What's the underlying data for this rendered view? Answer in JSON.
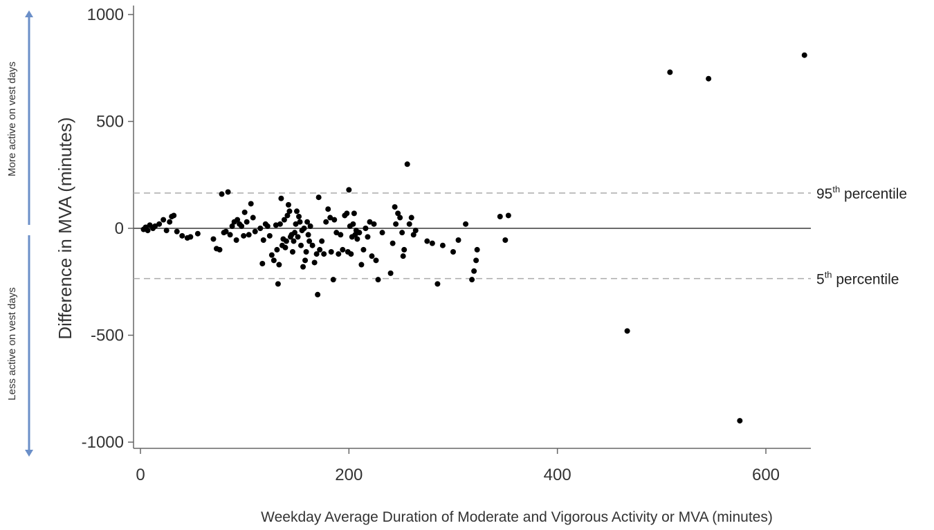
{
  "chart_data": {
    "type": "scatter",
    "xlabel": "Weekday Average Duration of Moderate and Vigorous Activity or MVA (minutes)",
    "ylabel": "Difference in MVA  (minutes)",
    "xlim": [
      -5,
      645
    ],
    "ylim": [
      -1050,
      1020
    ],
    "x_ticks": [
      0,
      200,
      400,
      600
    ],
    "y_ticks": [
      1000,
      500,
      0,
      -500,
      -1000
    ],
    "x_tick_labels": [
      "0",
      "200",
      "400",
      "600"
    ],
    "y_tick_labels": [
      "1000",
      "500",
      "0",
      "-500",
      "-1000"
    ],
    "zero_line": 0,
    "reference_lines": [
      {
        "value": 165,
        "label": "95",
        "sup": "th",
        "suffix": " percentile",
        "style": "dashed"
      },
      {
        "value": -235,
        "label": "5",
        "sup": "th",
        "suffix": " percentile",
        "style": "dashed"
      }
    ],
    "side_annotations": {
      "upper": "More active on vest days",
      "lower": "Less active on vest days",
      "arrow_color": "#6b8fc8"
    },
    "grid": false,
    "legend": "none",
    "points": [
      [
        3,
        -5
      ],
      [
        5,
        5
      ],
      [
        7,
        -10
      ],
      [
        9,
        15
      ],
      [
        12,
        0
      ],
      [
        14,
        10
      ],
      [
        18,
        20
      ],
      [
        22,
        40
      ],
      [
        25,
        -10
      ],
      [
        28,
        30
      ],
      [
        30,
        55
      ],
      [
        32,
        60
      ],
      [
        35,
        -15
      ],
      [
        40,
        -35
      ],
      [
        45,
        -45
      ],
      [
        48,
        -40
      ],
      [
        55,
        -25
      ],
      [
        70,
        -50
      ],
      [
        73,
        -95
      ],
      [
        76,
        -100
      ],
      [
        78,
        160
      ],
      [
        80,
        -20
      ],
      [
        82,
        -15
      ],
      [
        84,
        170
      ],
      [
        86,
        -30
      ],
      [
        88,
        10
      ],
      [
        90,
        30
      ],
      [
        92,
        -55
      ],
      [
        93,
        40
      ],
      [
        95,
        20
      ],
      [
        97,
        10
      ],
      [
        99,
        -35
      ],
      [
        100,
        75
      ],
      [
        102,
        30
      ],
      [
        104,
        -30
      ],
      [
        106,
        115
      ],
      [
        108,
        50
      ],
      [
        110,
        -15
      ],
      [
        115,
        0
      ],
      [
        117,
        -165
      ],
      [
        118,
        -55
      ],
      [
        120,
        20
      ],
      [
        122,
        10
      ],
      [
        124,
        -35
      ],
      [
        126,
        -125
      ],
      [
        128,
        -150
      ],
      [
        130,
        15
      ],
      [
        131,
        -100
      ],
      [
        132,
        -260
      ],
      [
        133,
        -170
      ],
      [
        134,
        20
      ],
      [
        135,
        140
      ],
      [
        136,
        -80
      ],
      [
        137,
        -50
      ],
      [
        138,
        40
      ],
      [
        139,
        -90
      ],
      [
        140,
        -60
      ],
      [
        141,
        60
      ],
      [
        142,
        110
      ],
      [
        143,
        80
      ],
      [
        144,
        -40
      ],
      [
        145,
        -30
      ],
      [
        146,
        -110
      ],
      [
        147,
        -60
      ],
      [
        148,
        -20
      ],
      [
        149,
        20
      ],
      [
        150,
        80
      ],
      [
        151,
        -40
      ],
      [
        152,
        55
      ],
      [
        153,
        30
      ],
      [
        154,
        -80
      ],
      [
        155,
        -10
      ],
      [
        156,
        -180
      ],
      [
        157,
        0
      ],
      [
        158,
        -150
      ],
      [
        159,
        -110
      ],
      [
        160,
        30
      ],
      [
        161,
        -30
      ],
      [
        162,
        -60
      ],
      [
        163,
        10
      ],
      [
        165,
        -80
      ],
      [
        167,
        -160
      ],
      [
        169,
        -120
      ],
      [
        170,
        -310
      ],
      [
        171,
        145
      ],
      [
        172,
        -100
      ],
      [
        174,
        -60
      ],
      [
        176,
        -120
      ],
      [
        178,
        30
      ],
      [
        180,
        90
      ],
      [
        182,
        50
      ],
      [
        183,
        -110
      ],
      [
        185,
        -240
      ],
      [
        186,
        40
      ],
      [
        188,
        -20
      ],
      [
        190,
        -120
      ],
      [
        192,
        -30
      ],
      [
        194,
        -100
      ],
      [
        196,
        60
      ],
      [
        198,
        70
      ],
      [
        199,
        -110
      ],
      [
        200,
        180
      ],
      [
        201,
        10
      ],
      [
        202,
        -120
      ],
      [
        203,
        -40
      ],
      [
        204,
        20
      ],
      [
        205,
        70
      ],
      [
        206,
        -30
      ],
      [
        207,
        -10
      ],
      [
        208,
        -50
      ],
      [
        210,
        -20
      ],
      [
        212,
        -170
      ],
      [
        214,
        -100
      ],
      [
        216,
        0
      ],
      [
        218,
        -40
      ],
      [
        220,
        30
      ],
      [
        222,
        -130
      ],
      [
        224,
        20
      ],
      [
        226,
        -150
      ],
      [
        228,
        -240
      ],
      [
        232,
        -20
      ],
      [
        240,
        -210
      ],
      [
        242,
        -70
      ],
      [
        244,
        100
      ],
      [
        245,
        20
      ],
      [
        247,
        70
      ],
      [
        249,
        50
      ],
      [
        251,
        -20
      ],
      [
        252,
        -130
      ],
      [
        253,
        -100
      ],
      [
        256,
        300
      ],
      [
        258,
        20
      ],
      [
        260,
        50
      ],
      [
        262,
        -30
      ],
      [
        264,
        -10
      ],
      [
        275,
        -60
      ],
      [
        280,
        -70
      ],
      [
        285,
        -260
      ],
      [
        290,
        -80
      ],
      [
        300,
        -110
      ],
      [
        305,
        -55
      ],
      [
        312,
        20
      ],
      [
        318,
        -240
      ],
      [
        320,
        -200
      ],
      [
        322,
        -150
      ],
      [
        323,
        -100
      ],
      [
        345,
        55
      ],
      [
        350,
        -55
      ],
      [
        353,
        60
      ],
      [
        467,
        -480
      ],
      [
        508,
        730
      ],
      [
        545,
        700
      ],
      [
        575,
        -900
      ],
      [
        637,
        810
      ]
    ]
  }
}
